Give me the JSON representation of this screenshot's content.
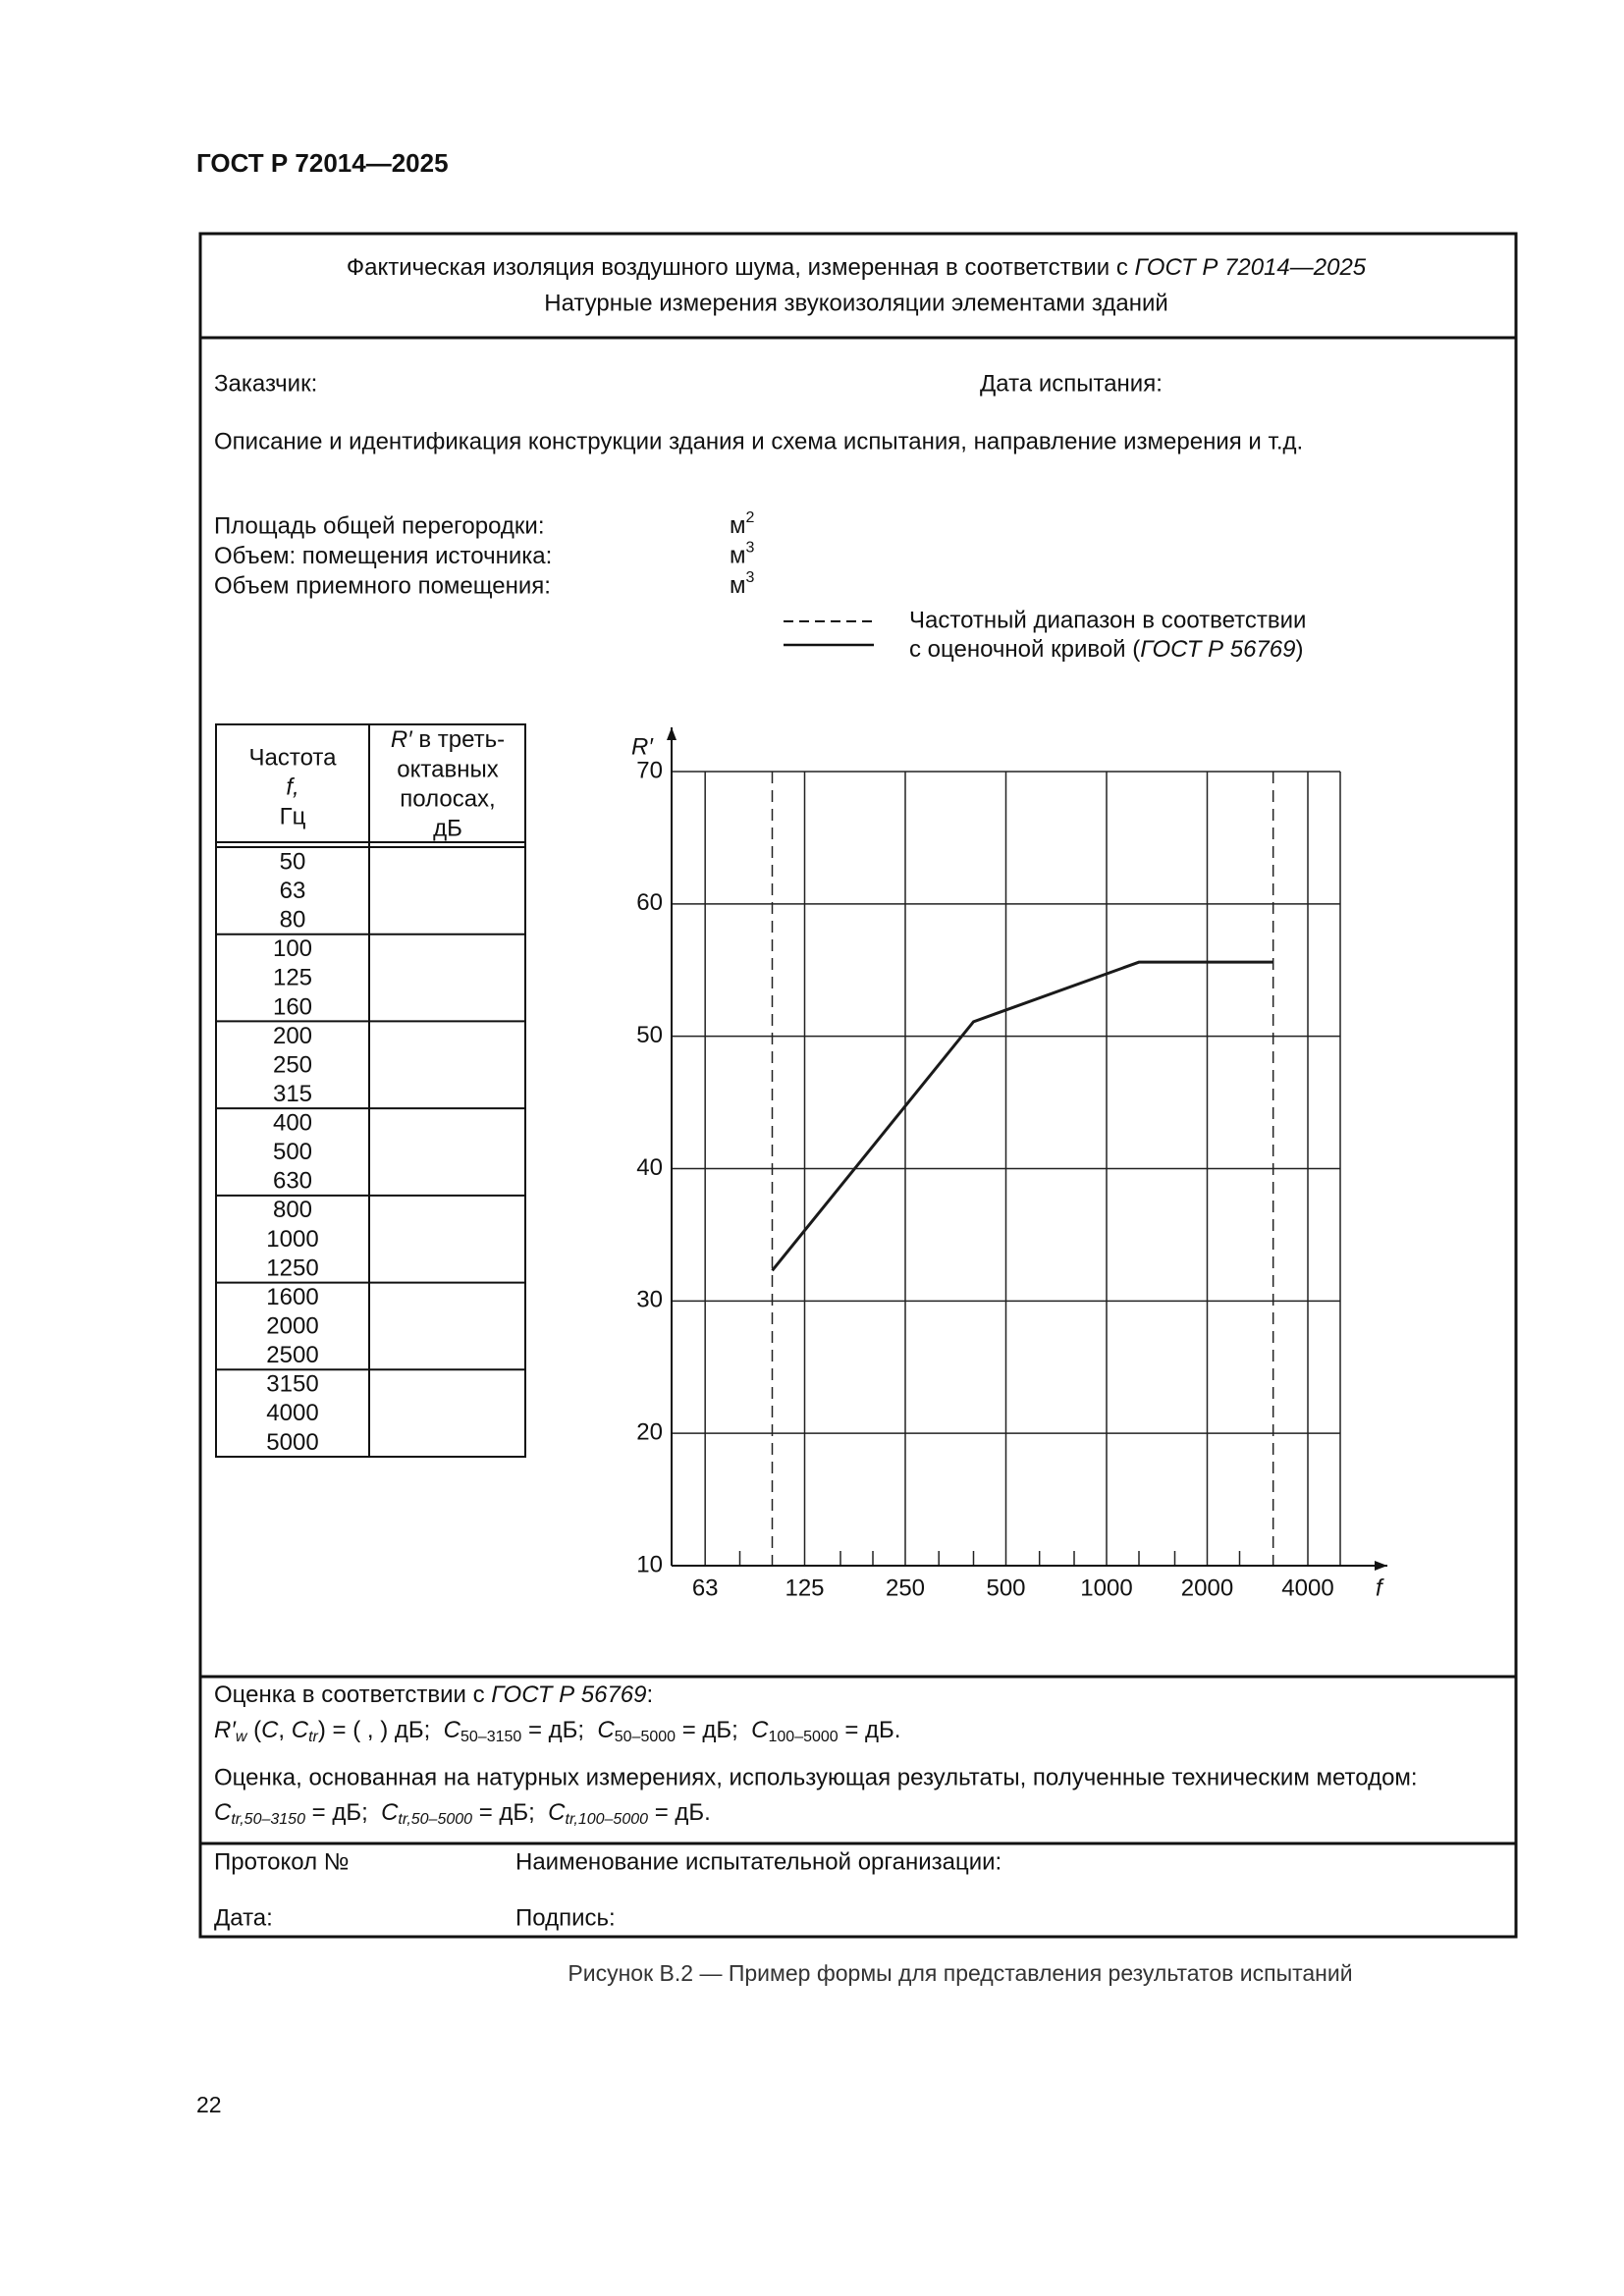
{
  "header": {
    "title": "ГОСТ Р 72014—2025"
  },
  "form": {
    "title": {
      "line1": "Фактическая изоляция воздушного шума, измеренная в соответствии с ",
      "line1_ref": "ГОСТ Р 72014—2025",
      "line2": "Натурные измерения звукоизоляции элементами зданий"
    },
    "customer": "Заказчик:",
    "test_date": "Дата испытания:",
    "description": "Описание и идентификация конструкции здания и схема испытания, направление измерения и т.д.",
    "fields": [
      {
        "label": "Площадь общей перегородки:",
        "unit": "м",
        "exp": "2"
      },
      {
        "label": "Объем: помещения источника:",
        "unit": "м",
        "exp": "3"
      },
      {
        "label": "Объем приемного помещения:",
        "unit": "м",
        "exp": "3"
      }
    ],
    "legend": {
      "line1": "Частотный диапазон в соответствии",
      "line2": "с оценочной кривой (",
      "line2_ref": "ГОСТ Р 56769",
      "line2_end": ")"
    }
  },
  "table": {
    "header": {
      "frequency": [
        "Частота",
        "f,",
        "Гц"
      ],
      "level_symbol": "R′",
      "level": [
        " в треть-",
        "октавных",
        "полосах,",
        "дБ"
      ]
    },
    "groups": [
      [
        50,
        63,
        80
      ],
      [
        100,
        125,
        160
      ],
      [
        200,
        250,
        315
      ],
      [
        400,
        500,
        630
      ],
      [
        800,
        1000,
        1250
      ],
      [
        1600,
        2000,
        2500
      ],
      [
        3150,
        4000,
        5000
      ]
    ]
  },
  "chart_data": {
    "type": "line",
    "ylabel": "R′",
    "xlabel": "f",
    "xscale": "log",
    "xlim": [
      50,
      5000
    ],
    "ylim": [
      10,
      70
    ],
    "xticks": [
      63,
      125,
      250,
      500,
      1000,
      2000,
      4000
    ],
    "yticks": [
      10,
      20,
      30,
      40,
      50,
      60,
      70
    ],
    "minor_xticks": [
      80,
      160,
      200,
      315,
      400,
      630,
      800,
      1250,
      1600,
      2500
    ],
    "range_lines": [
      100,
      3150
    ],
    "grid": true,
    "x": [
      100,
      400,
      1250,
      3150
    ],
    "series": [
      {
        "values": [
          32.3,
          51.1,
          55.6,
          55.6
        ],
        "color": "#1a1a1a"
      }
    ]
  },
  "evaluation": {
    "line1": "Оценка в соответствии с ",
    "line1_ref": "ГОСТ Р 56769",
    "line1_end": ":",
    "line2": [
      "R′",
      "w",
      " (",
      "C",
      ", ",
      "C",
      "tr",
      ") = ( , ) дБ;  ",
      "C",
      "50–3150",
      " = дБ;  ",
      "C",
      "50–5000",
      " = дБ;  ",
      "C",
      "100–5000",
      " = дБ."
    ],
    "line3": "Оценка, основанная на натурных измерениях, использующая результаты, полученные техническим методом:",
    "line4": [
      "C",
      "tr,50–3150",
      " = дБ;  ",
      "C",
      "tr,50–5000",
      " = дБ;  ",
      "C",
      "tr,100–5000",
      " = дБ."
    ]
  },
  "footer": {
    "protocol": "Протокол №",
    "organization": "Наименование испытательной организации:",
    "date": "Дата:",
    "signature": "Подпись:"
  },
  "caption": "Рисунок В.2 — Пример формы для представления результатов испытаний",
  "page_number": "22"
}
